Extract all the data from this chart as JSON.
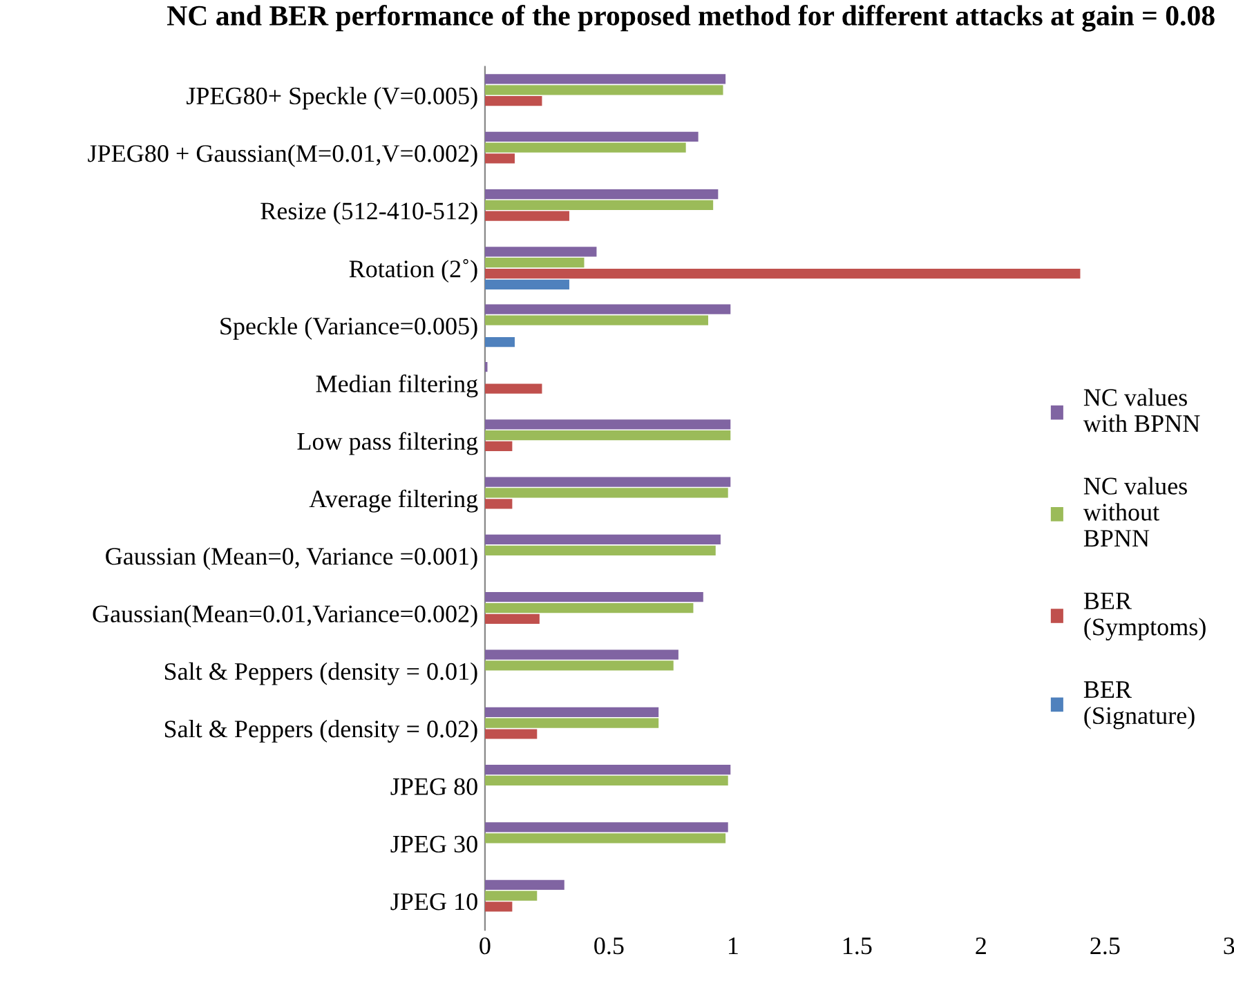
{
  "chart_data": {
    "type": "bar",
    "orientation": "horizontal",
    "title": "NC and BER performance of the proposed method for different attacks at gain = 0.08",
    "categories": [
      "JPEG80+ Speckle (V=0.005)",
      "JPEG80 + Gaussian(M=0.01,V=0.002)",
      "Resize (512-410-512)",
      "Rotation (2˚)",
      "Speckle (Variance=0.005)",
      "Median filtering",
      "Low pass filtering",
      "Average filtering",
      "Gaussian (Mean=0, Variance =0.001)",
      "Gaussian(Mean=0.01,Variance=0.002)",
      "Salt & Peppers (density = 0.01)",
      "Salt & Peppers (density = 0.02)",
      "JPEG 80",
      "JPEG 30",
      "JPEG 10"
    ],
    "series": [
      {
        "name": "NC values\nwith BPNN",
        "color": "#8064a2",
        "values": [
          0.97,
          0.86,
          0.94,
          0.45,
          0.99,
          0.01,
          0.99,
          0.99,
          0.95,
          0.88,
          0.78,
          0.7,
          0.99,
          0.98,
          0.32
        ]
      },
      {
        "name": "NC values\nwithout\nBPNN",
        "color": "#9bbb59",
        "values": [
          0.96,
          0.81,
          0.92,
          0.4,
          0.9,
          null,
          0.99,
          0.98,
          0.93,
          0.84,
          0.76,
          0.7,
          0.98,
          0.97,
          0.21
        ]
      },
      {
        "name": "BER\n(Symptoms)",
        "color": "#c0504d",
        "values": [
          0.23,
          0.12,
          0.34,
          2.4,
          null,
          0.23,
          0.11,
          0.11,
          null,
          0.22,
          null,
          0.21,
          null,
          null,
          0.11
        ]
      },
      {
        "name": "BER\n(Signature)",
        "color": "#4f81bd",
        "values": [
          null,
          null,
          null,
          0.34,
          0.12,
          null,
          null,
          null,
          null,
          null,
          null,
          null,
          null,
          null,
          null
        ]
      }
    ],
    "xlim": [
      0,
      3
    ],
    "xticks": [
      0,
      0.5,
      1,
      1.5,
      2,
      2.5,
      3
    ],
    "grid": false,
    "legend": "right"
  }
}
